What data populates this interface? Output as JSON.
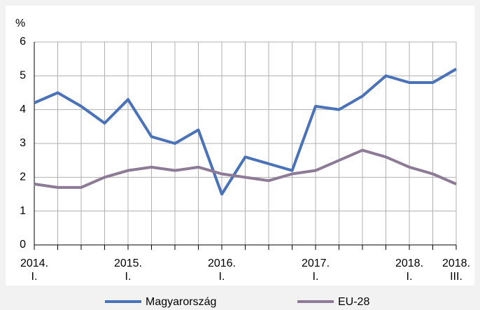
{
  "chart_data": {
    "type": "line",
    "y_label": "%",
    "categories": [
      "2014.\nI.",
      null,
      null,
      null,
      "2015.\nI.",
      null,
      null,
      null,
      "2016.\nI.",
      null,
      null,
      null,
      "2017.\nI.",
      null,
      null,
      null,
      "2018.\nI.",
      null,
      "2018.\nIII."
    ],
    "series": [
      {
        "name": "Magyarország",
        "color": "#4a72b8",
        "values": [
          4.2,
          4.5,
          4.1,
          3.6,
          4.3,
          3.2,
          3.0,
          3.4,
          1.5,
          2.6,
          2.4,
          2.2,
          4.1,
          4.0,
          4.4,
          5.0,
          4.8,
          4.8,
          5.2
        ]
      },
      {
        "name": "EU-28",
        "color": "#8c7a96",
        "values": [
          1.8,
          1.7,
          1.7,
          2.0,
          2.2,
          2.3,
          2.2,
          2.3,
          2.1,
          2.0,
          1.9,
          2.1,
          2.2,
          2.5,
          2.8,
          2.6,
          2.3,
          2.1,
          1.8
        ]
      }
    ],
    "ylim": [
      0,
      6
    ],
    "yticks": [
      0,
      1,
      2,
      3,
      4,
      5,
      6
    ],
    "grid": true,
    "legend": "bottom"
  }
}
